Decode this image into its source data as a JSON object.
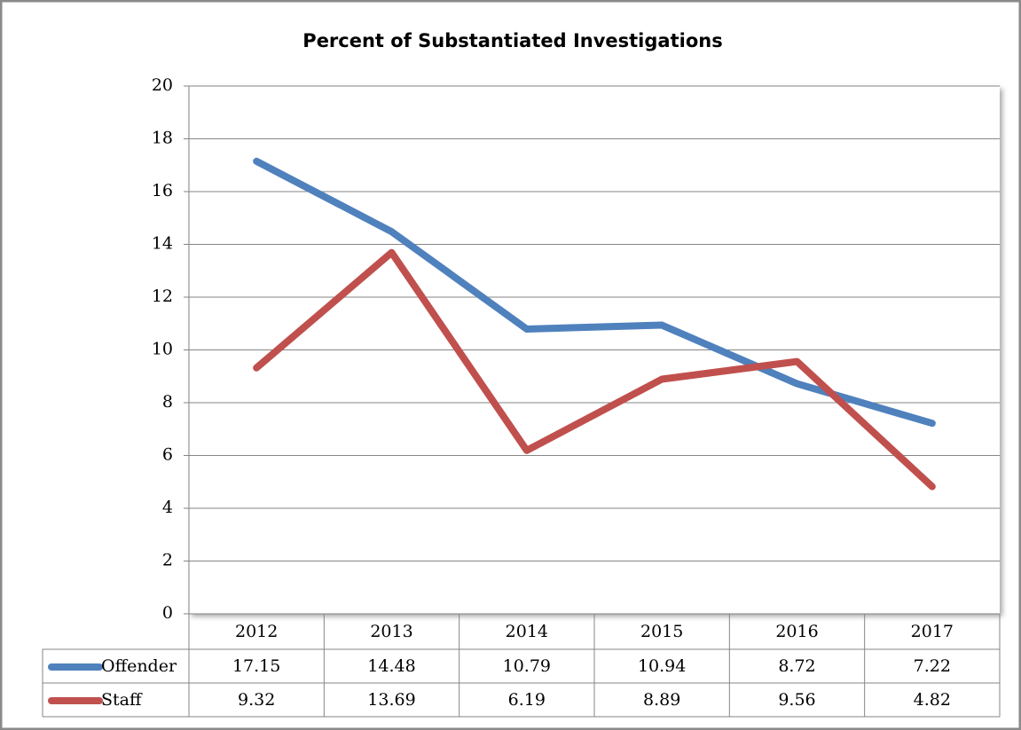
{
  "chart_data": {
    "type": "line",
    "title": "Percent of Substantiated Investigations",
    "categories": [
      "2012",
      "2013",
      "2014",
      "2015",
      "2016",
      "2017"
    ],
    "series": [
      {
        "name": "Offender",
        "color": "#4f81bd",
        "values": [
          17.15,
          14.48,
          10.79,
          10.94,
          8.72,
          7.22
        ]
      },
      {
        "name": "Staff",
        "color": "#c0504d",
        "values": [
          9.32,
          13.69,
          6.19,
          8.89,
          9.56,
          4.82
        ]
      }
    ],
    "ylim": [
      0,
      20
    ],
    "yticks": [
      0,
      2,
      4,
      6,
      8,
      10,
      12,
      14,
      16,
      18,
      20
    ],
    "grid": true
  }
}
